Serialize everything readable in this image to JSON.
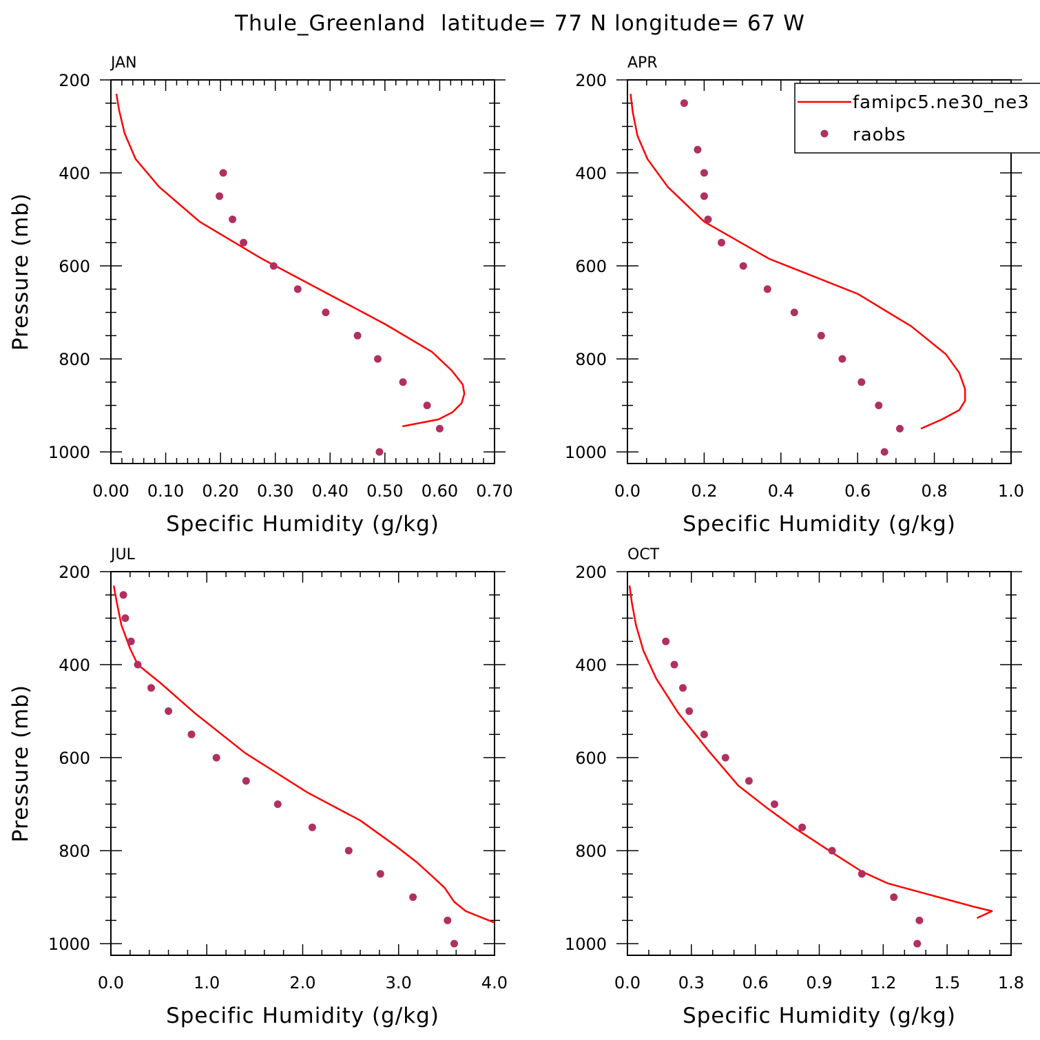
{
  "title": "Thule_Greenland  latitude= 77 N longitude= 67 W",
  "colors": {
    "model": "#ff0000",
    "obs": "#b03060",
    "axes": "#000000"
  },
  "legend": {
    "entries": [
      {
        "label": "famipc5.ne30_ne3",
        "style": "line",
        "color": "#ff0000"
      },
      {
        "label": "raobs",
        "style": "dot",
        "color": "#b03060"
      }
    ]
  },
  "chart_data": [
    {
      "type": "line",
      "label": "JAN",
      "xlabel": "Specific Humidity (g/kg)",
      "ylabel": "Pressure (mb)",
      "xlim": [
        0,
        0.7
      ],
      "ylim": [
        200,
        1025
      ],
      "y_inverted": true,
      "xticks": [
        0,
        0.1,
        0.2,
        0.3,
        0.4,
        0.5,
        0.6,
        0.7
      ],
      "xtick_labels": [
        "0.00",
        "0.10",
        "0.20",
        "0.30",
        "0.40",
        "0.50",
        "0.60",
        "0.70"
      ],
      "xminor": 5,
      "yticks": [
        200,
        400,
        600,
        800,
        1000
      ],
      "series": [
        {
          "style": "line",
          "x": [
            0.01,
            0.015,
            0.025,
            0.045,
            0.088,
            0.162,
            0.276,
            0.5,
            0.586,
            0.622,
            0.642,
            0.645,
            0.64,
            0.623,
            0.598,
            0.532
          ],
          "y": [
            230,
            265,
            315,
            370,
            430,
            505,
            585,
            725,
            785,
            825,
            855,
            875,
            895,
            915,
            930,
            945
          ]
        },
        {
          "style": "dot",
          "x": [
            0.205,
            0.198,
            0.222,
            0.242,
            0.297,
            0.341,
            0.392,
            0.45,
            0.487,
            0.533,
            0.577,
            0.6,
            0.49
          ],
          "y": [
            400,
            450,
            500,
            550,
            600,
            650,
            700,
            750,
            800,
            850,
            900,
            950,
            1000
          ]
        }
      ]
    },
    {
      "type": "line",
      "label": "APR",
      "xlabel": "Specific Humidity (g/kg)",
      "ylabel": "",
      "xlim": [
        0,
        1.0
      ],
      "ylim": [
        200,
        1025
      ],
      "y_inverted": true,
      "xticks": [
        0,
        0.2,
        0.4,
        0.6,
        0.8,
        1.0
      ],
      "xtick_labels": [
        "0.0",
        "0.2",
        "0.4",
        "0.6",
        "0.8",
        "1.0"
      ],
      "xminor": 4,
      "yticks": [
        200,
        400,
        600,
        800,
        1000
      ],
      "series": [
        {
          "style": "line",
          "x": [
            0.008,
            0.014,
            0.026,
            0.052,
            0.105,
            0.2,
            0.37,
            0.6,
            0.74,
            0.83,
            0.865,
            0.88,
            0.88,
            0.865,
            0.82,
            0.765
          ],
          "y": [
            230,
            270,
            320,
            370,
            430,
            505,
            585,
            660,
            730,
            790,
            830,
            865,
            890,
            910,
            930,
            950
          ]
        },
        {
          "style": "dot",
          "x": [
            0.148,
            0.183,
            0.2,
            0.2,
            0.21,
            0.245,
            0.302,
            0.365,
            0.435,
            0.505,
            0.56,
            0.61,
            0.655,
            0.71,
            0.67
          ],
          "y": [
            250,
            350,
            400,
            450,
            500,
            550,
            600,
            650,
            700,
            750,
            800,
            850,
            900,
            950,
            1000
          ]
        }
      ]
    },
    {
      "type": "line",
      "label": "JUL",
      "xlabel": "Specific Humidity (g/kg)",
      "ylabel": "Pressure (mb)",
      "xlim": [
        0,
        4.0
      ],
      "ylim": [
        200,
        1025
      ],
      "y_inverted": true,
      "xticks": [
        0,
        1,
        2,
        3,
        4
      ],
      "xtick_labels": [
        "0.0",
        "1.0",
        "2.0",
        "3.0",
        "4.0"
      ],
      "xminor": 5,
      "yticks": [
        200,
        400,
        600,
        800,
        1000
      ],
      "series": [
        {
          "style": "line",
          "x": [
            0.03,
            0.06,
            0.11,
            0.2,
            0.28,
            0.52,
            0.88,
            1.4,
            2.05,
            2.6,
            2.97,
            3.19,
            3.35,
            3.48,
            3.58,
            3.7,
            4.0
          ],
          "y": [
            230,
            265,
            315,
            365,
            400,
            440,
            505,
            590,
            675,
            735,
            790,
            825,
            855,
            880,
            910,
            930,
            955
          ]
        },
        {
          "style": "dot",
          "x": [
            0.13,
            0.15,
            0.21,
            0.28,
            0.42,
            0.6,
            0.84,
            1.1,
            1.41,
            1.74,
            2.1,
            2.48,
            2.81,
            3.15,
            3.51,
            3.58
          ],
          "y": [
            250,
            300,
            350,
            400,
            450,
            500,
            550,
            600,
            650,
            700,
            750,
            800,
            850,
            900,
            950,
            1000
          ]
        }
      ]
    },
    {
      "type": "line",
      "label": "OCT",
      "xlabel": "Specific Humidity (g/kg)",
      "ylabel": "",
      "xlim": [
        0,
        1.8
      ],
      "ylim": [
        200,
        1025
      ],
      "y_inverted": true,
      "xticks": [
        0,
        0.3,
        0.6,
        0.9,
        1.2,
        1.5,
        1.8
      ],
      "xtick_labels": [
        "0.0",
        "0.3",
        "0.6",
        "0.9",
        "1.2",
        "1.5",
        "1.8"
      ],
      "xminor": 3,
      "yticks": [
        200,
        400,
        600,
        800,
        1000
      ],
      "series": [
        {
          "style": "line",
          "x": [
            0.01,
            0.02,
            0.04,
            0.075,
            0.135,
            0.24,
            0.38,
            0.52,
            0.66,
            0.78,
            0.98,
            1.1,
            1.22,
            1.38,
            1.5,
            1.62,
            1.71,
            1.64
          ],
          "y": [
            230,
            265,
            315,
            370,
            430,
            505,
            585,
            660,
            710,
            750,
            810,
            845,
            870,
            890,
            905,
            920,
            930,
            945
          ]
        },
        {
          "style": "dot",
          "x": [
            0.18,
            0.22,
            0.26,
            0.29,
            0.36,
            0.46,
            0.57,
            0.69,
            0.82,
            0.96,
            1.1,
            1.25,
            1.37,
            1.36
          ],
          "y": [
            350,
            400,
            450,
            500,
            550,
            600,
            650,
            700,
            750,
            800,
            850,
            900,
            950,
            1000
          ]
        }
      ]
    }
  ]
}
